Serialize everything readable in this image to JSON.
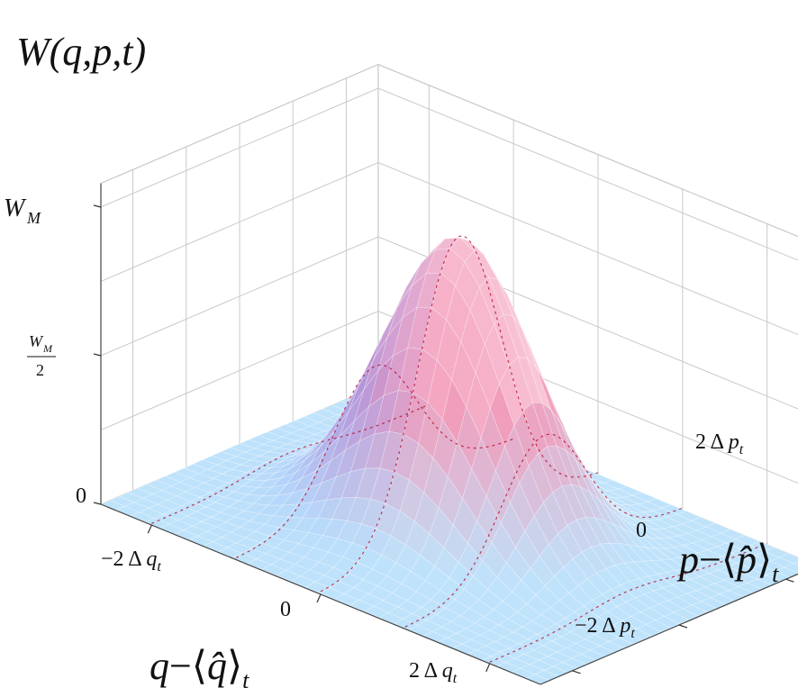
{
  "chart_data": {
    "type": "surface",
    "title": "W(q,p,t)",
    "xlabel": "q−⟨q̂⟩_t",
    "ylabel": "p−⟨p̂⟩_t",
    "zlabel": "W(q,p,t)",
    "x_range": [
      -2.6,
      2.6
    ],
    "y_range": [
      -2.6,
      2.6
    ],
    "z_range": [
      0,
      1
    ],
    "grid": true,
    "x_ticks": [
      {
        "value": -2,
        "label": "−2 Δ q_t"
      },
      {
        "value": 0,
        "label": "0"
      },
      {
        "value": 2,
        "label": "2 Δ q_t"
      }
    ],
    "y_ticks": [
      {
        "value": -2,
        "label": "−2 Δ p_t"
      },
      {
        "value": 0,
        "label": "0"
      },
      {
        "value": 2,
        "label": "2 Δ p_t"
      }
    ],
    "z_ticks": [
      {
        "value": 0,
        "label": "0"
      },
      {
        "value": 0.5,
        "label": "W_M / 2"
      },
      {
        "value": 1,
        "label": "W_M"
      }
    ],
    "surface": {
      "function": "gaussian",
      "peak_value": 1,
      "center": [
        0,
        0
      ],
      "sigma": [
        1,
        1
      ],
      "colormap": [
        "#6d7cf4",
        "#f39ab9",
        "#fce3ea",
        "#bfe3fb"
      ]
    },
    "contour_lines": [
      {
        "name": "",
        "q_values": [
          -2.0,
          -1.0,
          0.0,
          1.0,
          2.0
        ],
        "color": "#b4001e"
      }
    ]
  }
}
